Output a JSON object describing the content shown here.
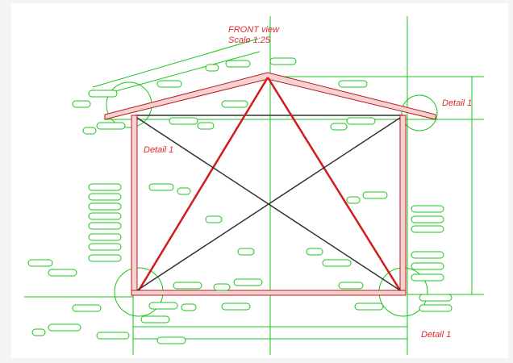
{
  "drawing": {
    "view_title": "FRONT view",
    "scale": "Scale 1:25",
    "detail_labels": [
      "Detail 1",
      "Detail 1",
      "Detail 1"
    ]
  }
}
